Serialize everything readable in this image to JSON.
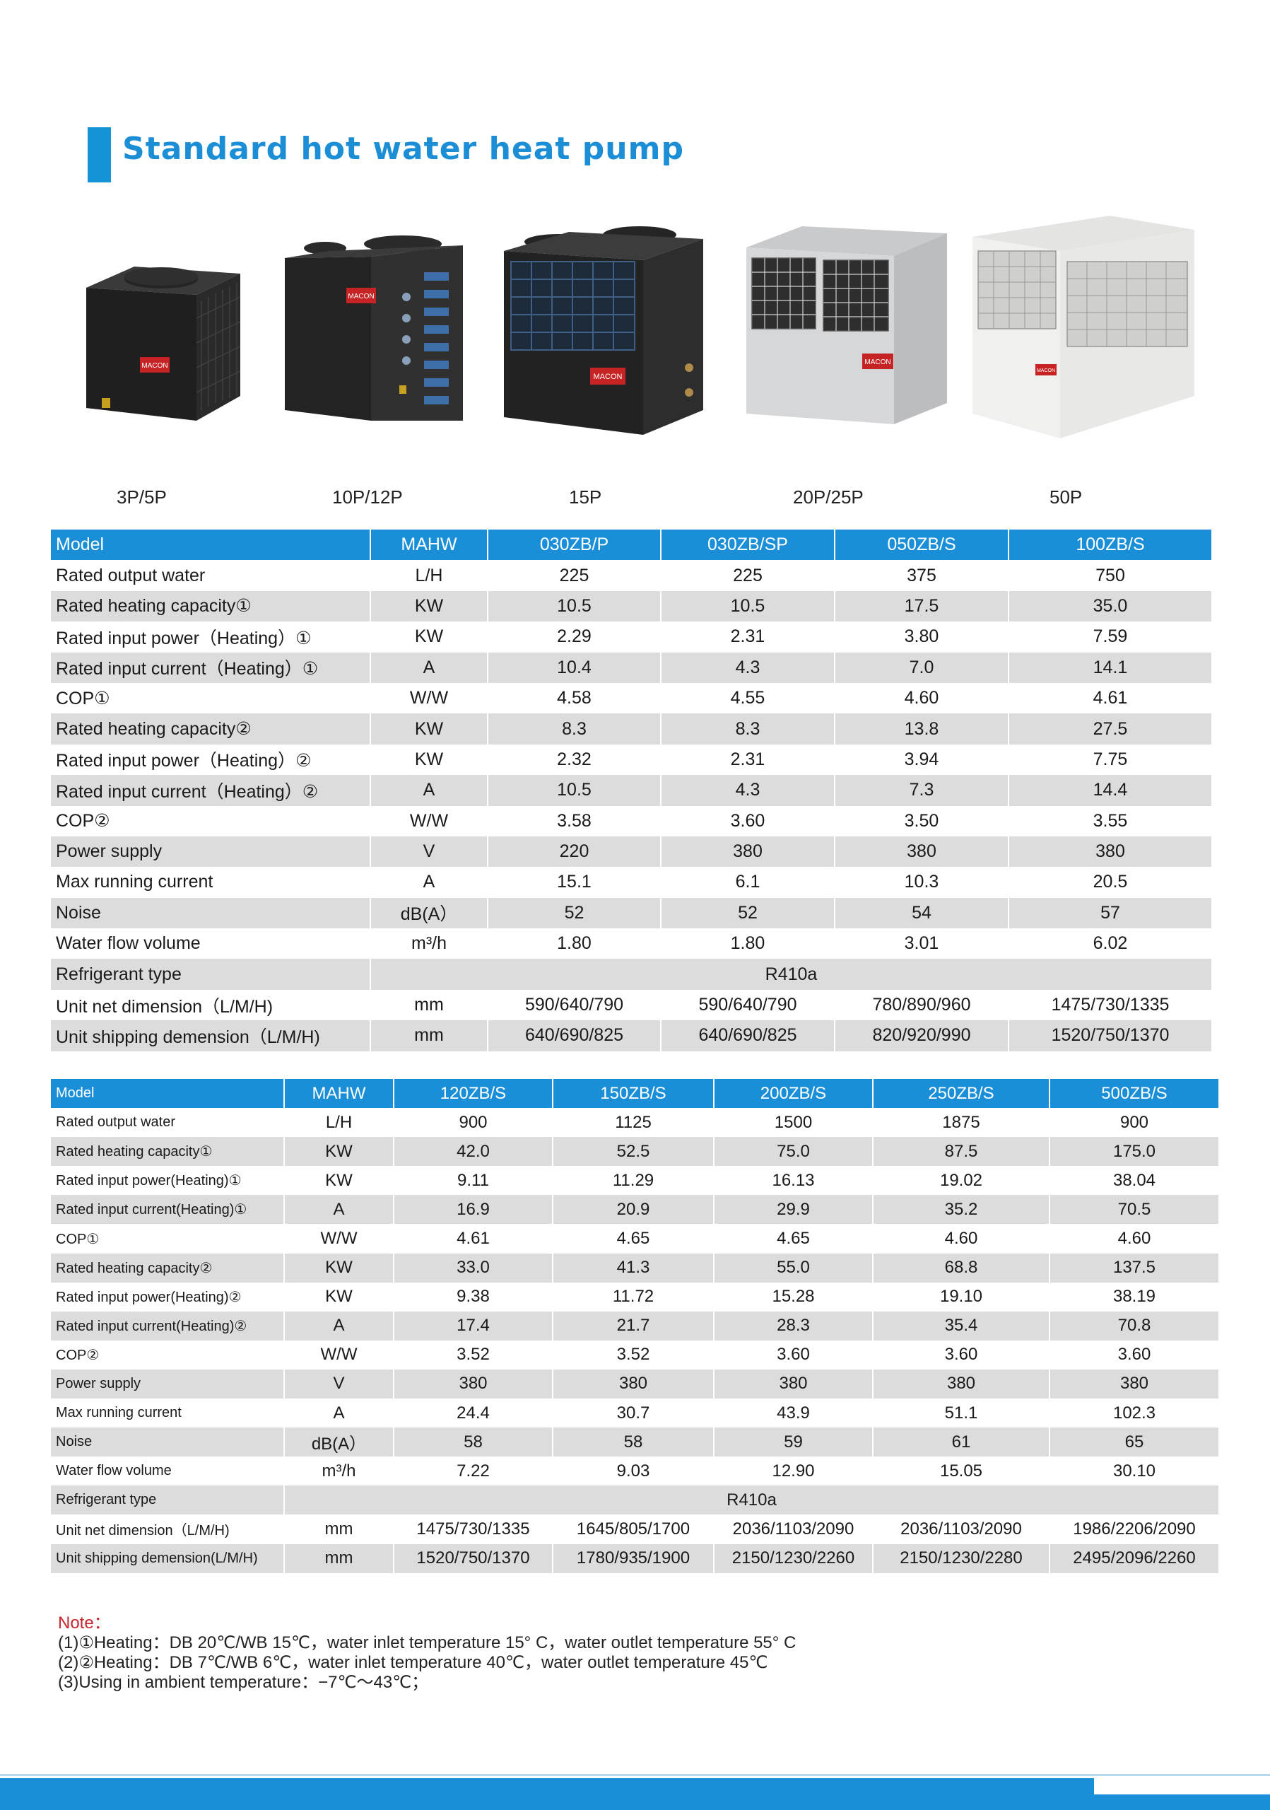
{
  "title": "Standard hot water heat pump",
  "products": [
    {
      "caption": "3P/5P",
      "brand": "MACON"
    },
    {
      "caption": "10P/12P",
      "brand": "MACON"
    },
    {
      "caption": "15P",
      "brand": "MACON"
    },
    {
      "caption": "20P/25P",
      "brand": "MACON"
    },
    {
      "caption": "50P",
      "brand": "MACON"
    }
  ],
  "table1": {
    "header": [
      "Model",
      "MAHW",
      "030ZB/P",
      "030ZB/SP",
      "050ZB/S",
      "100ZB/S"
    ],
    "rows": [
      [
        "Rated output water",
        "L/H",
        "225",
        "225",
        "375",
        "750"
      ],
      [
        "Rated heating capacity①",
        "KW",
        "10.5",
        "10.5",
        "17.5",
        "35.0"
      ],
      [
        "Rated input power（Heating）①",
        "KW",
        "2.29",
        "2.31",
        "3.80",
        "7.59"
      ],
      [
        "Rated input current（Heating）①",
        "A",
        "10.4",
        "4.3",
        "7.0",
        "14.1"
      ],
      [
        "COP①",
        "W/W",
        "4.58",
        "4.55",
        "4.60",
        "4.61"
      ],
      [
        "Rated heating capacity②",
        "KW",
        "8.3",
        "8.3",
        "13.8",
        "27.5"
      ],
      [
        "Rated input power（Heating）②",
        "KW",
        "2.32",
        "2.31",
        "3.94",
        "7.75"
      ],
      [
        "Rated input current（Heating）②",
        "A",
        "10.5",
        "4.3",
        "7.3",
        "14.4"
      ],
      [
        "COP②",
        "W/W",
        "3.58",
        "3.60",
        "3.50",
        "3.55"
      ],
      [
        "Power supply",
        "V",
        "220",
        "380",
        "380",
        "380"
      ],
      [
        "Max running current",
        "A",
        "15.1",
        "6.1",
        "10.3",
        "20.5"
      ],
      [
        "Noise",
        "dB(A）",
        "52",
        "52",
        "54",
        "57"
      ],
      [
        "Water flow volume",
        "m³/h",
        "1.80",
        "1.80",
        "3.01",
        "6.02"
      ],
      [
        "Refrigerant type",
        "R410a"
      ],
      [
        "Unit net dimension（L/M/H)",
        "mm",
        "590/640/790",
        "590/640/790",
        "780/890/960",
        "1475/730/1335"
      ],
      [
        "Unit shipping demension（L/M/H)",
        "mm",
        "640/690/825",
        "640/690/825",
        "820/920/990",
        "1520/750/1370"
      ]
    ]
  },
  "table2": {
    "header": [
      "Model",
      "MAHW",
      "120ZB/S",
      "150ZB/S",
      "200ZB/S",
      "250ZB/S",
      "500ZB/S"
    ],
    "rows": [
      [
        "Rated output water",
        "L/H",
        "900",
        "1125",
        "1500",
        "1875",
        "900"
      ],
      [
        "Rated heating capacity①",
        "KW",
        "42.0",
        "52.5",
        "75.0",
        "87.5",
        "175.0"
      ],
      [
        "Rated input power(Heating)①",
        "KW",
        "9.11",
        "11.29",
        "16.13",
        "19.02",
        "38.04"
      ],
      [
        "Rated input current(Heating)①",
        "A",
        "16.9",
        "20.9",
        "29.9",
        "35.2",
        "70.5"
      ],
      [
        "COP①",
        "W/W",
        "4.61",
        "4.65",
        "4.65",
        "4.60",
        "4.60"
      ],
      [
        "Rated heating capacity②",
        "KW",
        "33.0",
        "41.3",
        "55.0",
        "68.8",
        "137.5"
      ],
      [
        "Rated input power(Heating)②",
        "KW",
        "9.38",
        "11.72",
        "15.28",
        "19.10",
        "38.19"
      ],
      [
        "Rated input current(Heating)②",
        "A",
        "17.4",
        "21.7",
        "28.3",
        "35.4",
        "70.8"
      ],
      [
        "COP②",
        "W/W",
        "3.52",
        "3.52",
        "3.60",
        "3.60",
        "3.60"
      ],
      [
        "Power supply",
        "V",
        "380",
        "380",
        "380",
        "380",
        "380"
      ],
      [
        "Max running current",
        "A",
        "24.4",
        "30.7",
        "43.9",
        "51.1",
        "102.3"
      ],
      [
        "Noise",
        "dB(A）",
        "58",
        "58",
        "59",
        "61",
        "65"
      ],
      [
        "Water flow volume",
        "m³/h",
        "7.22",
        "9.03",
        "12.90",
        "15.05",
        "30.10"
      ],
      [
        "Refrigerant type",
        "R410a"
      ],
      [
        "Unit net dimension（L/M/H)",
        "mm",
        "1475/730/1335",
        "1645/805/1700",
        "2036/1103/2090",
        "2036/1103/2090",
        "1986/2206/2090"
      ],
      [
        "Unit shipping demension(L/M/H)",
        "mm",
        "1520/750/1370",
        "1780/935/1900",
        "2150/1230/2260",
        "2150/1230/2280",
        "2495/2096/2260"
      ]
    ]
  },
  "notes": {
    "title": "Note：",
    "lines": [
      "(1)①Heating：DB 20℃/WB 15℃，water inlet temperature 15° C，water outlet temperature 55° C",
      "(2)②Heating：DB 7℃/WB 6℃，water inlet temperature 40℃，water outlet temperature 45℃",
      "(3)Using in ambient temperature：−7℃～43℃；"
    ]
  }
}
